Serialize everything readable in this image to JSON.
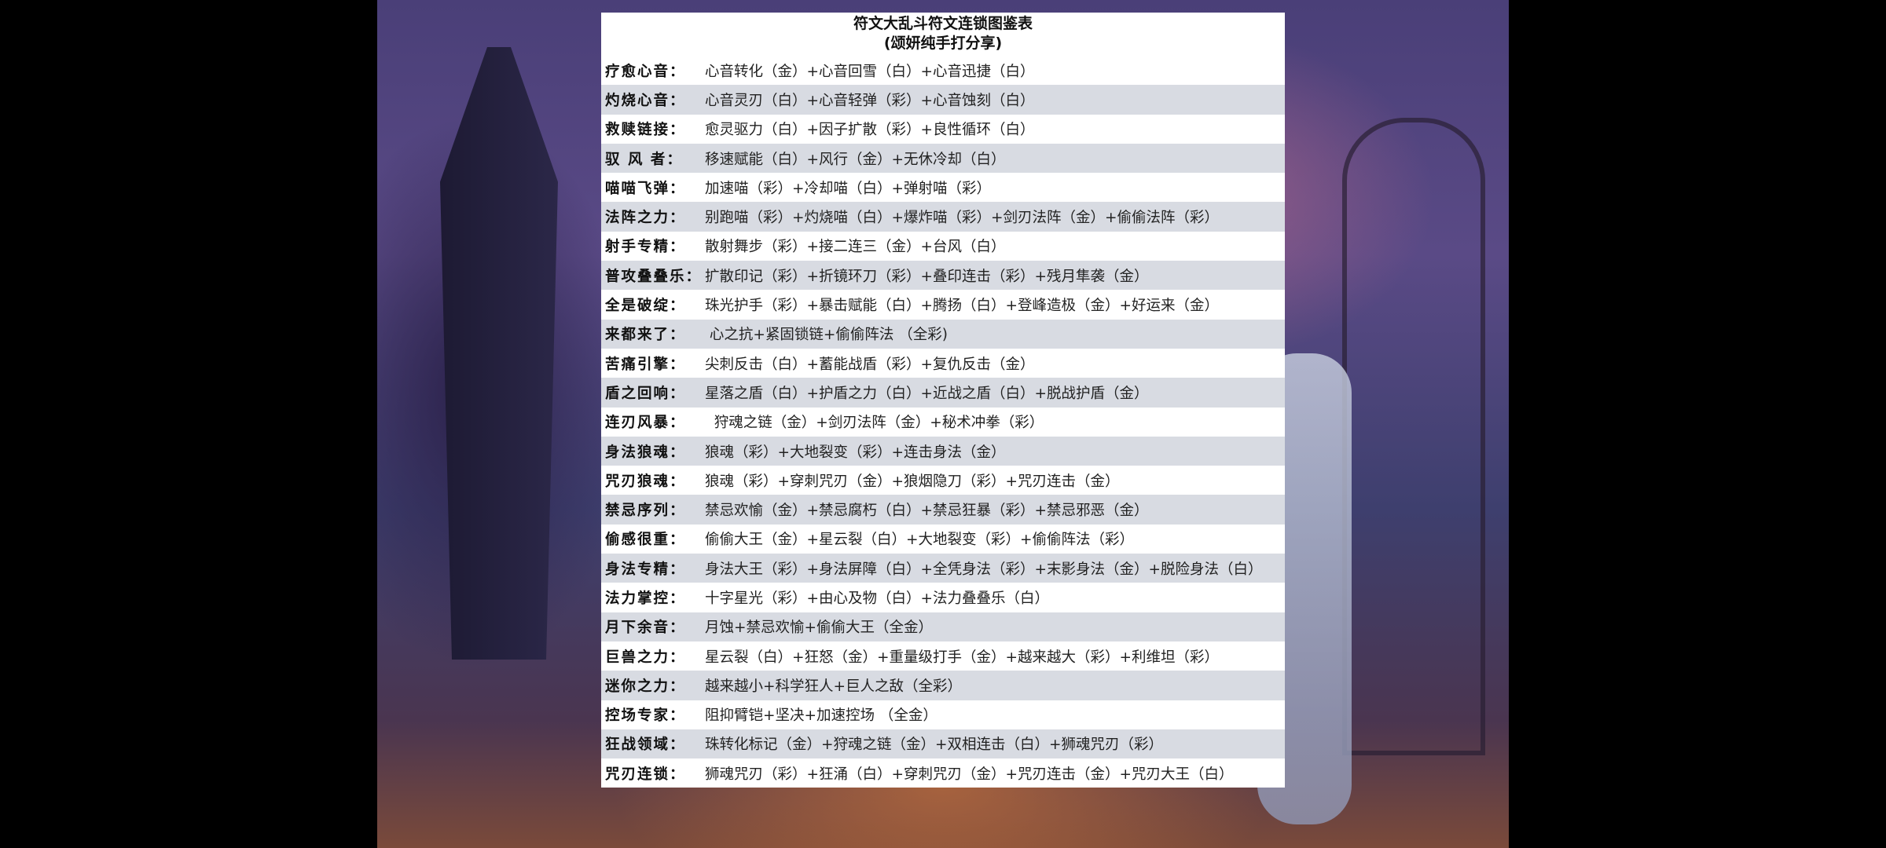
{
  "title": "符文大乱斗符文连锁图鉴表",
  "subtitle": "(颂妍纯手打分享)",
  "rows": [
    {
      "label": "疗愈心音：",
      "value": "心音转化（金）+心音回雪（白）+心音迅捷（白）"
    },
    {
      "label": "灼烧心音：",
      "value": "心音灵刃（白）+心音轻弹（彩）+心音蚀刻（白）"
    },
    {
      "label": "救赎链接：",
      "value": "愈灵驱力（白）+因子扩散（彩）+良性循环（白）"
    },
    {
      "label": "驭 风 者：",
      "value": "移速赋能（白）+风行（金）+无休冷却（白）"
    },
    {
      "label": "喵喵飞弹：",
      "value": "加速喵（彩）+冷却喵（白）+弹射喵（彩）"
    },
    {
      "label": "法阵之力：",
      "value": "别跑喵（彩）+灼烧喵（白）+爆炸喵（彩）+剑刃法阵（金）+偷偷法阵（彩）"
    },
    {
      "label": "射手专精：",
      "value": "散射舞步（彩）+接二连三（金）+台风（白）"
    },
    {
      "label": "普攻叠叠乐：",
      "value": "扩散印记（彩）+折镜环刀（彩）+叠印连击（彩）+残月隼袭（金）"
    },
    {
      "label": "全是破绽：",
      "value": "珠光护手（彩）+暴击赋能（白）+腾扬（白）+登峰造极（金）+好运来（金）"
    },
    {
      "label": "来都来了：",
      "value": " 心之抗+紧固锁链+偷偷阵法 （全彩)"
    },
    {
      "label": "苦痛引擎：",
      "value": "尖刺反击（白）+蓄能战盾（彩）+复仇反击（金）"
    },
    {
      "label": "盾之回响：",
      "value": "星落之盾（白）+护盾之力（白）+近战之盾（白）+脱战护盾（金）"
    },
    {
      "label": "连刃风暴：",
      "value": "  狩魂之链（金）+剑刃法阵（金）+秘术冲拳（彩）"
    },
    {
      "label": "身法狼魂：",
      "value": "狼魂（彩）+大地裂变（彩）+连击身法（金）"
    },
    {
      "label": "咒刃狼魂：",
      "value": "狼魂（彩）+穿刺咒刃（金）+狼烟隐刀（彩）+咒刃连击（金）"
    },
    {
      "label": "禁忌序列：",
      "value": "禁忌欢愉（金）+禁忌腐朽（白）+禁忌狂暴（彩）+禁忌邪恶（金）"
    },
    {
      "label": "偷感很重：",
      "value": "偷偷大王（金）+星云裂（白）+大地裂变（彩）+偷偷阵法（彩）"
    },
    {
      "label": "身法专精：",
      "value": "身法大王（彩）+身法屏障（白）+全凭身法（彩）+末影身法（金）+脱险身法（白）"
    },
    {
      "label": "法力掌控：",
      "value": "十字星光（彩）+由心及物（白）+法力叠叠乐（白）"
    },
    {
      "label": "月下余音：",
      "value": "月蚀+禁忌欢愉+偷偷大王（全金）"
    },
    {
      "label": "巨兽之力：",
      "value": "星云裂（白）+狂怒（金）+重量级打手（金）+越来越大（彩）+利维坦（彩）"
    },
    {
      "label": "迷你之力：",
      "value": "越来越小+科学狂人+巨人之敌（全彩）"
    },
    {
      "label": "控场专家：",
      "value": "阻抑臂铠+坚决+加速控场 （全金）"
    },
    {
      "label": "狂战领域：",
      "value": "珠转化标记（金）+狩魂之链（金）+双相连击（白）+狮魂咒刃（彩）"
    },
    {
      "label": "咒刃连锁：",
      "value": "狮魂咒刃（彩）+狂涌（白）+穿刺咒刃（金）+咒刃连击（金）+咒刃大王（白）"
    }
  ]
}
